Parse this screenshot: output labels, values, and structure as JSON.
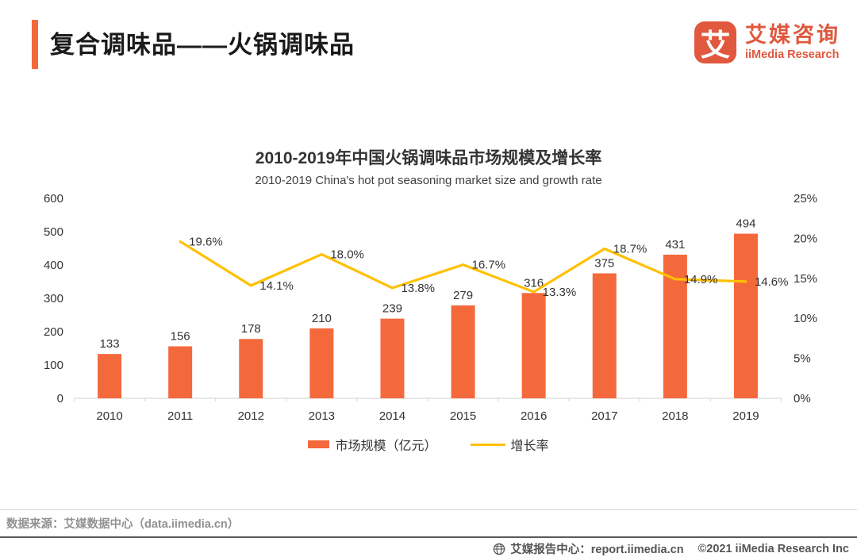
{
  "header": {
    "title": "复合调味品——火锅调味品",
    "logo": {
      "symbol": "艾",
      "name_cn": "艾媒咨询",
      "name_en": "iiMedia Research",
      "color": "#e0583e"
    }
  },
  "chart_data": {
    "type": "bar+line",
    "title": "2010-2019年中国火锅调味品市场规模及增长率",
    "subtitle": "2010-2019 China's hot pot seasoning market size and growth rate",
    "categories": [
      "2010",
      "2011",
      "2012",
      "2013",
      "2014",
      "2015",
      "2016",
      "2017",
      "2018",
      "2019"
    ],
    "series": [
      {
        "name": "市场规模（亿元）",
        "type": "bar",
        "color": "#f4693c",
        "values": [
          133,
          156,
          178,
          210,
          239,
          279,
          316,
          375,
          431,
          494
        ]
      },
      {
        "name": "增长率",
        "type": "line",
        "color": "#ffc000",
        "values": [
          null,
          19.6,
          14.1,
          18.0,
          13.8,
          16.7,
          13.3,
          18.7,
          14.9,
          14.6
        ],
        "labels": [
          null,
          "19.6%",
          "14.1%",
          "18.0%",
          "13.8%",
          "16.7%",
          "13.3%",
          "18.7%",
          "14.9%",
          "14.6%"
        ]
      }
    ],
    "left_axis": {
      "min": 0,
      "max": 600,
      "ticks": [
        0,
        100,
        200,
        300,
        400,
        500,
        600
      ]
    },
    "right_axis": {
      "min": 0,
      "max": 25,
      "ticks": [
        0,
        5,
        10,
        15,
        20,
        25
      ],
      "suffix": "%"
    },
    "grid": false,
    "legend_position": "bottom"
  },
  "footer": {
    "source": "数据来源：艾媒数据中心（data.iimedia.cn）",
    "credit": "艾媒报告中心：report.iimedia.cn",
    "copyright": "©2021  iiMedia Research Inc"
  }
}
